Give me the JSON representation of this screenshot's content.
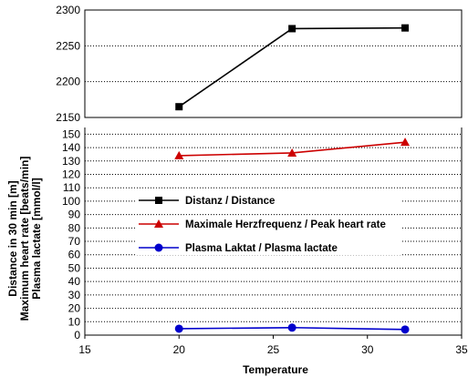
{
  "chart_data": {
    "type": "line",
    "xlabel": "Temperature",
    "ylabel": [
      "Distance in 30 min [m]",
      "Maximum heart rate [beats/min]",
      "Plasma lactate [mmol/l]"
    ],
    "x_axis": {
      "min": 15,
      "max": 35,
      "ticks": [
        15,
        20,
        25,
        30,
        35
      ]
    },
    "upper_axis": {
      "min": 2150,
      "max": 2300,
      "ticks": [
        2150,
        2200,
        2250,
        2300
      ]
    },
    "lower_axis": {
      "min": 0,
      "max": 155,
      "ticks": [
        0,
        10,
        20,
        30,
        40,
        50,
        60,
        70,
        80,
        90,
        100,
        110,
        120,
        130,
        140,
        150
      ]
    },
    "grid": true,
    "legend": "center-left",
    "series": [
      {
        "name": "Distanz / Distance",
        "panel": "upper",
        "color": "#000000",
        "marker": "square",
        "x": [
          20,
          26,
          32
        ],
        "y": [
          2165,
          2274,
          2275
        ]
      },
      {
        "name": "Maximale Herzfrequenz / Peak heart rate",
        "panel": "lower",
        "color": "#cc0000",
        "marker": "triangle",
        "x": [
          20,
          26,
          32
        ],
        "y": [
          134,
          136,
          144
        ]
      },
      {
        "name": "Plasma Laktat / Plasma lactate",
        "panel": "lower",
        "color": "#0000cc",
        "marker": "circle",
        "x": [
          20,
          26,
          32
        ],
        "y": [
          4.8,
          5.6,
          4.2
        ]
      }
    ]
  }
}
